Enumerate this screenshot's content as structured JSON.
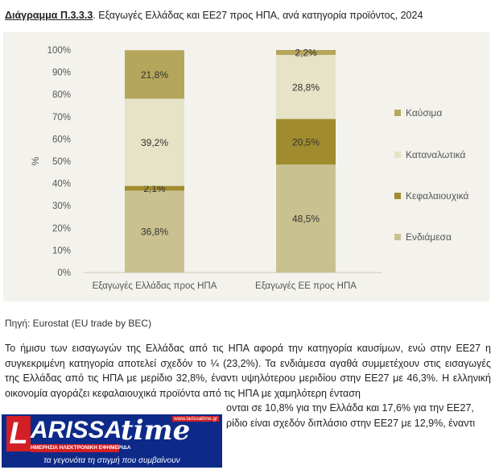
{
  "figure": {
    "label": "Διάγραμμα Π.3.3.3",
    "title": ". Εξαγωγές Ελλάδας και ΕΕ27 προς ΗΠΑ, ανά κατηγορία προϊόντος, 2024"
  },
  "chart_data": {
    "type": "bar",
    "stacked": true,
    "percent_stacked": true,
    "categories": [
      "Εξαγωγές Ελλάδας προς ΗΠΑ",
      "Εξαγωγές ΕΕ προς ΗΠΑ"
    ],
    "series": [
      {
        "name": "Ενδιάμεσα",
        "values": [
          36.8,
          48.5
        ],
        "labels": [
          "36,8%",
          "48,5%"
        ],
        "color": "#c9c190"
      },
      {
        "name": "Κεφαλαιουχικά",
        "values": [
          2.1,
          20.5
        ],
        "labels": [
          "2,1%",
          "20,5%"
        ],
        "color": "#a08c2e"
      },
      {
        "name": "Καταναλωτικά",
        "values": [
          39.2,
          28.8
        ],
        "labels": [
          "39,2%",
          "28,8%"
        ],
        "color": "#e6e3c6"
      },
      {
        "name": "Καύσιμα",
        "values": [
          21.8,
          2.2
        ],
        "labels": [
          "21,8%",
          "2,2%"
        ],
        "color": "#b5a65c"
      }
    ],
    "ylabel": "%",
    "xlabel": "",
    "ylim": [
      0,
      100
    ],
    "yticks": [
      "0%",
      "10%",
      "20%",
      "30%",
      "40%",
      "50%",
      "60%",
      "70%",
      "80%",
      "90%",
      "100%"
    ],
    "legend": [
      "Καύσιμα",
      "Καταναλωτικά",
      "Κεφαλαιουχικά",
      "Ενδιάμεσα"
    ],
    "legend_position": "right",
    "grid": false
  },
  "source": "Πηγή: Eurostat (EU trade by BEC)",
  "paragraph": {
    "line1": "Το ήμισυ των εισαγωγών της Ελλάδας από τις ΗΠΑ αφορά την κατηγορία καυσίμων, ενώ στην ΕΕ27 η συγκεκριμένη κατηγορία αποτελεί σχεδόν το ¼ (23,2%). Τα ενδιάμεσα αγαθά συμμετέχουν στις εισαγωγές της Ελλάδας από τις ΗΠΑ με μερίδιο 32,8%, έναντι υψηλότερου μεριδίου στην ΕΕ27 με 46,3%. Η ελληνική οικονομία αγοράζει κεφαλαιουχικά προϊόντα από τις ΗΠΑ με χαμηλότερη ένταση",
    "line2": "ονται σε 10,8% για την Ελλάδα και 17,6% για την ΕΕ27,",
    "line3": "ρίδιο είναι σχεδόν διπλάσιο στην ΕΕ27 με 12,9%, έναντι"
  },
  "logo": {
    "first_letter": "L",
    "name": "ARISSA",
    "time": "time",
    "url": "www.larissatime.gr",
    "subtitle": "ΗΜΕΡΗΣΙΑ ΗΛΕΚΤΡΟΝΙΚΗ ΕΦΗΜΕΡΙΔΑ",
    "tagline": "τα γεγονότα τη στιγμή που συμβαίνουν"
  }
}
